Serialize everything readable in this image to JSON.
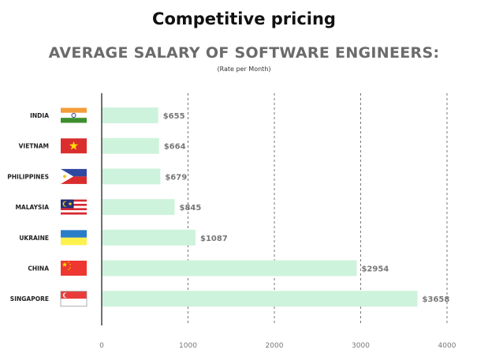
{
  "header": {
    "title": "Competitive pricing",
    "subtitle": "AVERAGE SALARY OF SOFTWARE ENGINEERS:",
    "note": "(Rate per Month)"
  },
  "chart_data": {
    "type": "bar",
    "orientation": "horizontal",
    "title": "AVERAGE SALARY OF SOFTWARE ENGINEERS:",
    "categories": [
      "INDIA",
      "VIETNAM",
      "PHILIPPINES",
      "MALAYSIA",
      "UKRAINE",
      "CHINA",
      "SINGAPORE"
    ],
    "flags": [
      "india-flag",
      "vietnam-flag",
      "philippines-flag",
      "malaysia-flag",
      "ukraine-flag",
      "china-flag",
      "singapore-flag"
    ],
    "values": [
      655,
      664,
      679,
      845,
      1087,
      2954,
      3658
    ],
    "data_labels": [
      "$655",
      "$664",
      "$679",
      "$845",
      "$1087",
      "$2954",
      "$3658"
    ],
    "xlim": [
      0,
      4000
    ],
    "xticks": [
      "0",
      "1000",
      "2000",
      "3000",
      "4000"
    ],
    "grid": "vertical dashed",
    "bar_color": "#cef3dc"
  }
}
